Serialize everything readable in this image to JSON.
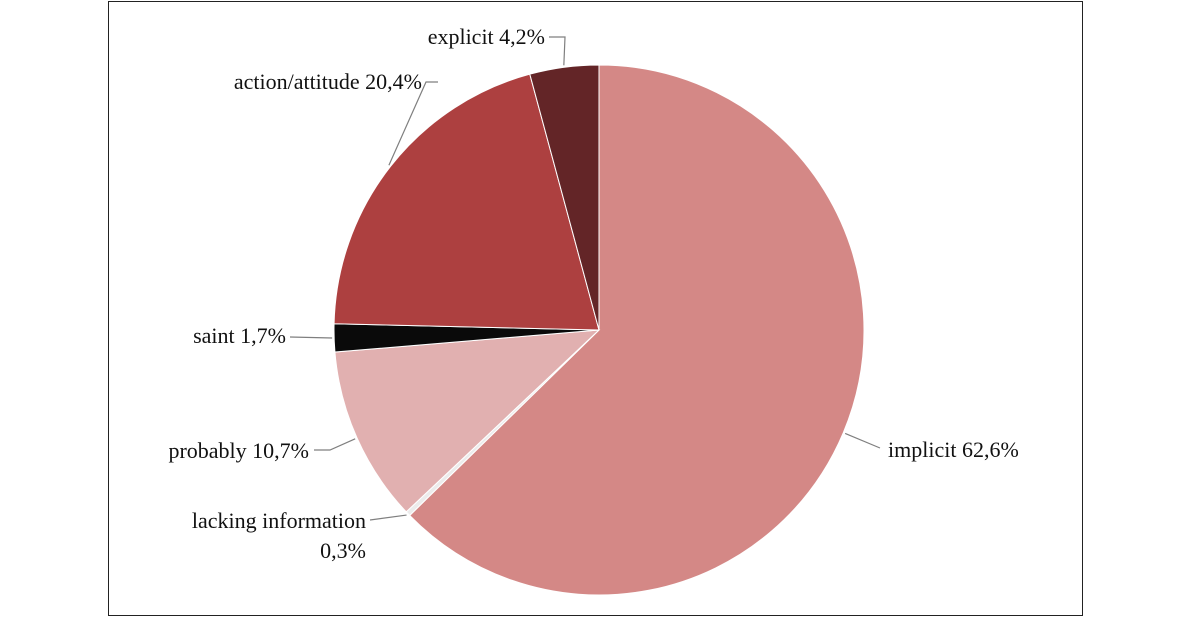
{
  "chart_data": {
    "type": "pie",
    "title": "",
    "slices": [
      {
        "label": "implicit",
        "value": 62.6,
        "display": "implicit 62,6%",
        "color": "#d48886"
      },
      {
        "label": "lacking information",
        "value": 0.3,
        "display_lines": [
          "lacking information",
          "0,3%"
        ],
        "color": "#ececec"
      },
      {
        "label": "probably",
        "value": 10.7,
        "display": "probably 10,7%",
        "color": "#e1b0b0"
      },
      {
        "label": "saint",
        "value": 1.7,
        "display": "saint 1,7%",
        "color": "#0a0a0a"
      },
      {
        "label": "action/attitude",
        "value": 20.4,
        "display": "action/attitude 20,4%",
        "color": "#ad4040"
      },
      {
        "label": "explicit",
        "value": 4.2,
        "display": "explicit 4,2%",
        "color": "#632527"
      }
    ],
    "start": "12 o'clock",
    "direction": "clockwise",
    "legend": "none",
    "data_labels": "outside with leader lines"
  }
}
